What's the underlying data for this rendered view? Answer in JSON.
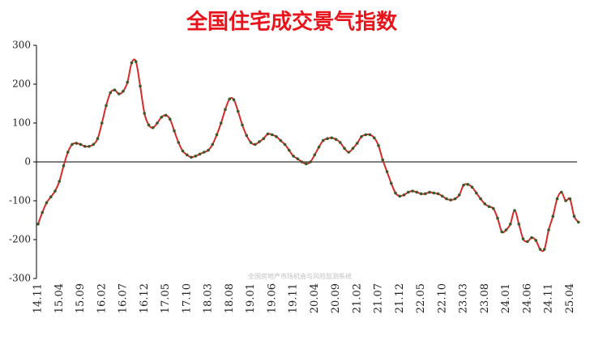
{
  "chart_data": {
    "type": "line",
    "title": "全国住宅成交景气指数",
    "watermark": "全国房地产市场机会与风险监测系统",
    "categories": [
      "14.11",
      null,
      null,
      null,
      null,
      "15.04",
      null,
      null,
      null,
      null,
      "15.09",
      null,
      null,
      null,
      null,
      "16.02",
      null,
      null,
      null,
      null,
      "16.07",
      null,
      null,
      null,
      null,
      "16.12",
      null,
      null,
      null,
      null,
      "17.05",
      null,
      null,
      null,
      null,
      "17.10",
      null,
      null,
      null,
      null,
      "18.03",
      null,
      null,
      null,
      null,
      "18.08",
      null,
      null,
      null,
      null,
      "19.01",
      null,
      null,
      null,
      null,
      "19.06",
      null,
      null,
      null,
      null,
      "19.11",
      null,
      null,
      null,
      null,
      "20.04",
      null,
      null,
      null,
      null,
      "20.09",
      null,
      null,
      null,
      null,
      "21.02",
      null,
      null,
      null,
      null,
      "21.07",
      null,
      null,
      null,
      null,
      "21.12",
      null,
      null,
      null,
      null,
      "22.05",
      null,
      null,
      null,
      null,
      "22.10",
      null,
      null,
      null,
      null,
      "23.03",
      null,
      null,
      null,
      null,
      "23.08",
      null,
      null,
      null,
      null,
      "24.01",
      null,
      null,
      null,
      null,
      "24.06",
      null,
      null,
      null,
      null,
      "24.11",
      null,
      null,
      null,
      null,
      "25.04",
      null,
      null
    ],
    "series": [
      {
        "color": "#d42a2a",
        "marker_color": "#3a5a2a",
        "values": [
          -160,
          -130,
          -105,
          -90,
          -75,
          -50,
          -10,
          25,
          45,
          48,
          45,
          40,
          40,
          45,
          60,
          100,
          145,
          178,
          185,
          175,
          182,
          205,
          255,
          258,
          195,
          125,
          95,
          88,
          100,
          115,
          120,
          110,
          80,
          50,
          28,
          18,
          12,
          15,
          20,
          25,
          30,
          45,
          70,
          100,
          135,
          162,
          160,
          130,
          95,
          68,
          50,
          45,
          52,
          60,
          72,
          70,
          65,
          55,
          45,
          30,
          15,
          8,
          0,
          -5,
          0,
          18,
          38,
          55,
          60,
          62,
          58,
          50,
          35,
          25,
          35,
          48,
          65,
          70,
          70,
          62,
          42,
          5,
          -25,
          -55,
          -80,
          -88,
          -85,
          -78,
          -75,
          -78,
          -82,
          -82,
          -78,
          -80,
          -82,
          -88,
          -95,
          -98,
          -95,
          -85,
          -60,
          -58,
          -65,
          -80,
          -95,
          -108,
          -115,
          -120,
          -145,
          -180,
          -175,
          -160,
          -125,
          -160,
          -198,
          -205,
          -195,
          -202,
          -225,
          -225,
          -175,
          -140,
          -95,
          -78,
          -100,
          -95,
          -140,
          -155
        ]
      }
    ],
    "ylim": [
      -300,
      300
    ],
    "yticks": [
      -300,
      -200,
      -100,
      0,
      100,
      200,
      300
    ]
  }
}
